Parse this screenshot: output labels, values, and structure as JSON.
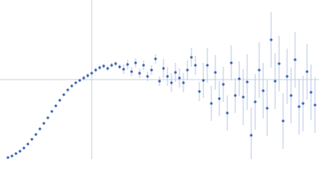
{
  "chart_data": {
    "type": "scatter",
    "x": [
      10,
      15,
      20,
      25,
      30,
      35,
      40,
      45,
      50,
      55,
      60,
      65,
      70,
      75,
      80,
      85,
      90,
      95,
      100,
      105,
      110,
      115,
      120,
      125,
      130,
      135,
      140,
      145,
      150,
      155,
      160,
      165,
      170,
      175,
      180,
      185,
      190,
      195,
      200,
      205,
      210,
      215,
      220,
      225,
      230,
      235,
      240,
      245,
      250,
      255,
      260,
      265,
      270,
      275,
      280,
      285,
      290,
      295,
      300,
      305,
      310,
      315,
      320,
      325,
      330,
      335,
      340,
      345,
      350,
      355,
      360,
      365,
      370,
      375,
      380,
      385,
      390,
      395
    ],
    "values": [
      2,
      4,
      7,
      10,
      14,
      19,
      25,
      31,
      38,
      45,
      52,
      60,
      67,
      74,
      81,
      87,
      92,
      96,
      99,
      102,
      105,
      108,
      112,
      115,
      117,
      114,
      118,
      120,
      116,
      113,
      119,
      110,
      121,
      108,
      118,
      104,
      112,
      126,
      98,
      114,
      104,
      96,
      109,
      102,
      96,
      112,
      128,
      118,
      85,
      99,
      118,
      70,
      109,
      76,
      94,
      58,
      121,
      80,
      101,
      78,
      97,
      30,
      72,
      112,
      86,
      64,
      150,
      98,
      120,
      48,
      104,
      80,
      125,
      66,
      70,
      110,
      84,
      68
    ],
    "errors": [
      1,
      1,
      1,
      1,
      1,
      1,
      1,
      1,
      1,
      1,
      1,
      1,
      1,
      1,
      1,
      1,
      1,
      1,
      1,
      3,
      3,
      3,
      3,
      3,
      3,
      3,
      3,
      3,
      3,
      6,
      6,
      6,
      6,
      6,
      6,
      6,
      6,
      6,
      6,
      12,
      12,
      12,
      12,
      12,
      12,
      12,
      12,
      12,
      12,
      22,
      22,
      22,
      22,
      22,
      22,
      22,
      22,
      22,
      22,
      35,
      35,
      35,
      35,
      35,
      35,
      35,
      35,
      35,
      35,
      35,
      35,
      35,
      35,
      35,
      35,
      35,
      35,
      35
    ],
    "color": "#3a64b4",
    "error_color": "#b9c9ea",
    "xlim": [
      0,
      400
    ],
    "ylim": [
      0,
      200
    ],
    "hline": 100,
    "vline": 115
  }
}
